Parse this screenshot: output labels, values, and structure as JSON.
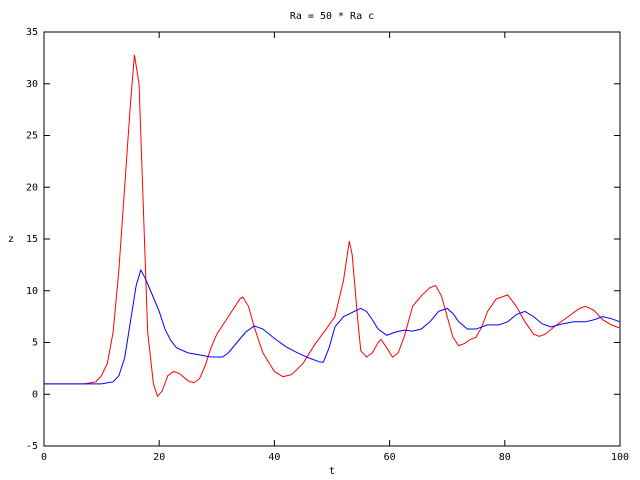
{
  "chart_data": {
    "type": "line",
    "title": "Ra = 50 * Ra c",
    "x_label": "t",
    "y_label": "z",
    "xlim": [
      0,
      100
    ],
    "xticks": [
      0,
      20,
      40,
      60,
      80,
      100
    ],
    "ylim": [
      -5,
      35
    ],
    "yticks": [
      -5,
      0,
      5,
      10,
      15,
      20,
      25,
      30,
      35
    ],
    "series": [
      {
        "color": "#ff0000",
        "x": [
          0,
          7,
          9,
          10,
          11,
          12,
          13,
          14,
          15,
          15.7,
          16.5,
          17,
          17.5,
          18,
          19,
          19.7,
          20.5,
          21.5,
          22.5,
          23.5,
          25,
          26,
          27,
          28,
          29,
          30,
          32,
          34,
          34.5,
          35.5,
          36.5,
          38,
          40,
          41.5,
          43,
          45,
          47,
          49,
          50.5,
          52,
          53,
          53.5,
          54.5,
          55,
          56,
          57,
          58,
          58.5,
          59.5,
          60.5,
          61.5,
          62.5,
          64,
          65.5,
          67,
          68,
          69,
          70,
          71,
          72,
          73,
          74,
          75,
          76,
          77,
          78.5,
          80.5,
          82,
          83.5,
          85,
          86,
          87,
          89,
          91,
          93,
          94,
          95.5,
          97,
          98.5,
          100
        ],
        "values": [
          1,
          1,
          1.2,
          1.8,
          3,
          6,
          12,
          20,
          28,
          32.8,
          30,
          22,
          14,
          6,
          1,
          -0.2,
          0.3,
          1.8,
          2.2,
          2,
          1.3,
          1.1,
          1.5,
          2.8,
          4.5,
          5.8,
          7.5,
          9.2,
          9.4,
          8.5,
          6.5,
          4,
          2.2,
          1.7,
          1.9,
          3,
          4.8,
          6.3,
          7.5,
          11,
          14.8,
          13.5,
          7,
          4.2,
          3.6,
          4,
          5,
          5.3,
          4.5,
          3.6,
          4,
          5.5,
          8.5,
          9.5,
          10.3,
          10.5,
          9.5,
          7.5,
          5.5,
          4.7,
          4.9,
          5.3,
          5.5,
          6.5,
          8,
          9.2,
          9.6,
          8.5,
          7,
          5.8,
          5.6,
          5.8,
          6.7,
          7.5,
          8.3,
          8.5,
          8.1,
          7.2,
          6.7,
          6.4
        ]
      },
      {
        "color": "#0000ff",
        "x": [
          0,
          10,
          12,
          13,
          14,
          15,
          16,
          16.8,
          17.5,
          18.5,
          20,
          21,
          22,
          23,
          25,
          27,
          29,
          31,
          32,
          33.5,
          35,
          36.5,
          38,
          40,
          42,
          44,
          46,
          48,
          48.5,
          49.5,
          50.5,
          52,
          53.5,
          55,
          56,
          57,
          58,
          59.5,
          61,
          62.5,
          64,
          65.5,
          67,
          68.5,
          70,
          71,
          72,
          73.5,
          75,
          77,
          79,
          80.5,
          82,
          83.5,
          85,
          86.5,
          88,
          90,
          92,
          94,
          95.5,
          97,
          98.5,
          100
        ],
        "values": [
          1,
          1,
          1.2,
          1.8,
          3.5,
          7,
          10.5,
          12,
          11.3,
          10,
          8,
          6.3,
          5.2,
          4.5,
          4,
          3.8,
          3.6,
          3.6,
          4,
          5,
          6,
          6.6,
          6.3,
          5.4,
          4.6,
          4,
          3.5,
          3.1,
          3.1,
          4.5,
          6.5,
          7.5,
          7.9,
          8.3,
          8,
          7.2,
          6.3,
          5.7,
          6,
          6.2,
          6.1,
          6.3,
          7,
          8,
          8.3,
          7.8,
          7,
          6.3,
          6.3,
          6.7,
          6.7,
          7,
          7.7,
          8,
          7.5,
          6.8,
          6.5,
          6.8,
          7,
          7,
          7.2,
          7.5,
          7.3,
          7
        ]
      }
    ]
  }
}
